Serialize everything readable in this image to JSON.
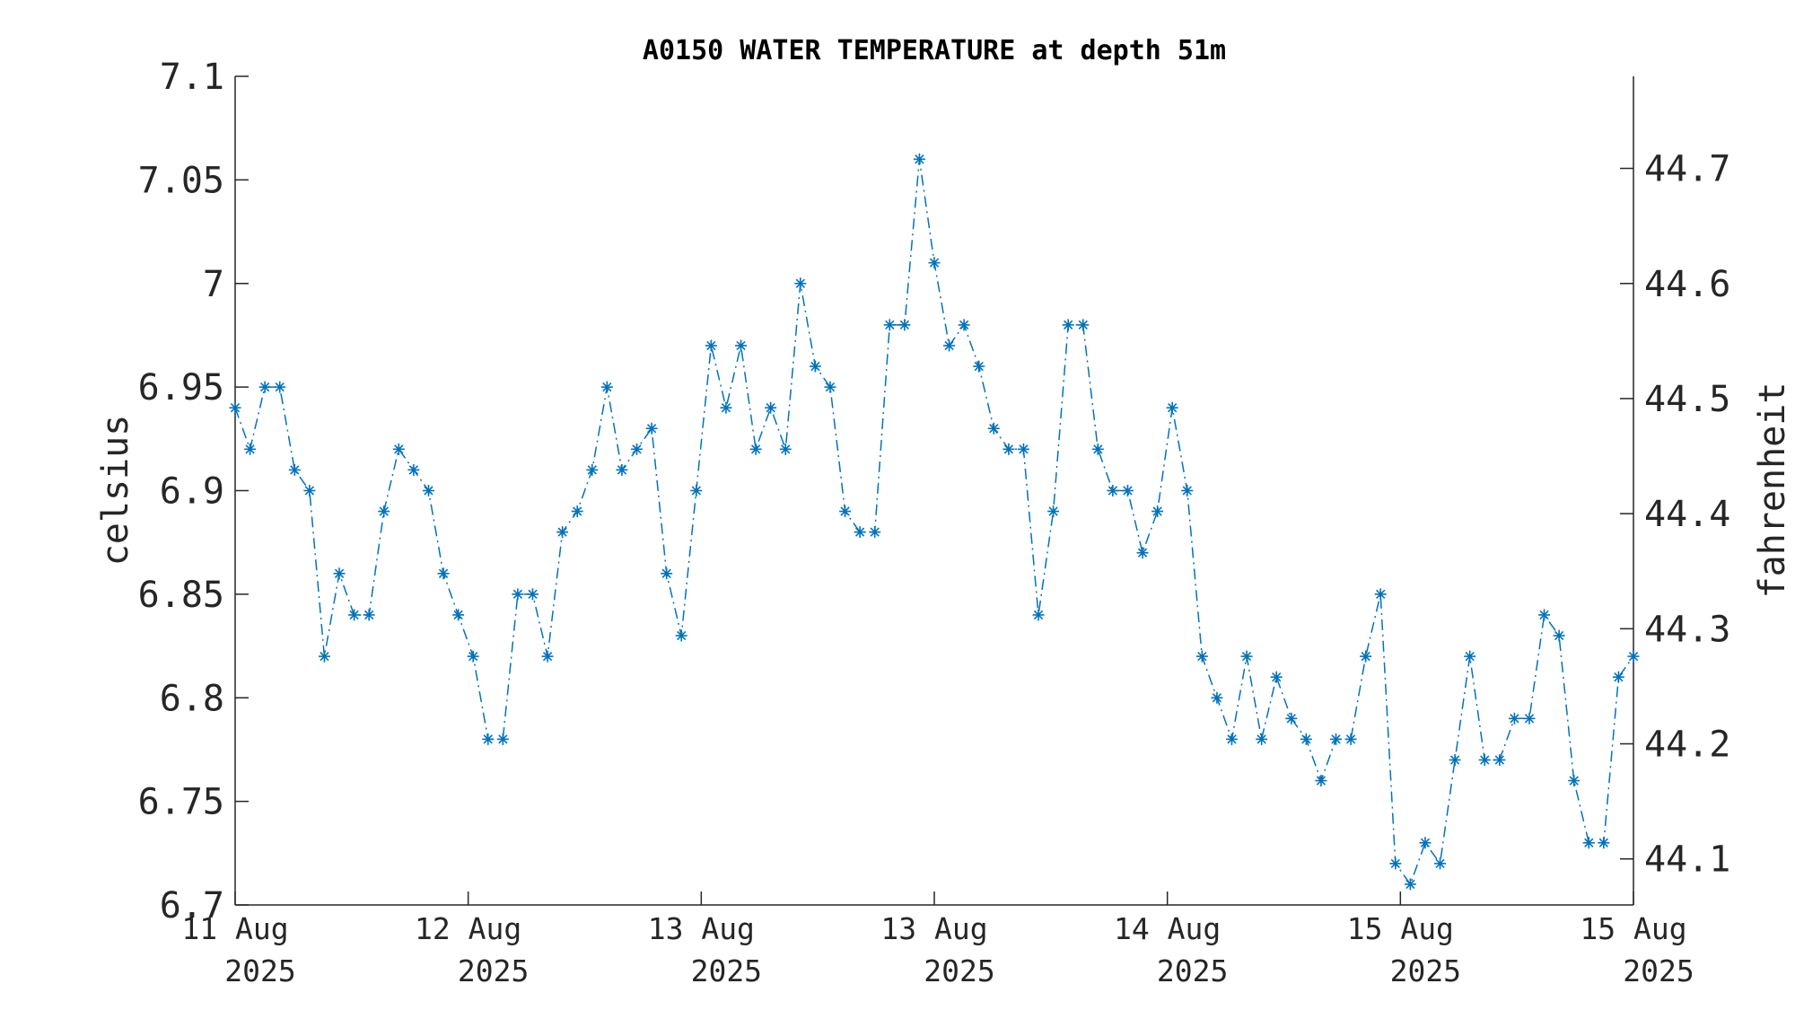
{
  "chart_data": {
    "type": "line",
    "title": "A0150 WATER TEMPERATURE at depth 51m",
    "ylabel": "celsius",
    "ylabel_right": "fahrenheit",
    "ylim": [
      6.7,
      7.1
    ],
    "ylim_right": [
      44.06,
      44.78
    ],
    "yticks": [
      "6.7",
      "6.75",
      "6.8",
      "6.85",
      "6.9",
      "6.95",
      "7",
      "7.05",
      "7.1"
    ],
    "yticks_right": [
      "44.1",
      "44.2",
      "44.3",
      "44.4",
      "44.5",
      "44.6",
      "44.7"
    ],
    "xticks": [
      {
        "day": "11 Aug",
        "year": "2025"
      },
      {
        "day": "12 Aug",
        "year": "2025"
      },
      {
        "day": "13 Aug",
        "year": "2025"
      },
      {
        "day": "13 Aug",
        "year": "2025"
      },
      {
        "day": "14 Aug",
        "year": "2025"
      },
      {
        "day": "15 Aug",
        "year": "2025"
      },
      {
        "day": "15 Aug",
        "year": "2025"
      }
    ],
    "series": [
      {
        "color": "#0072BD",
        "marker": "asterisk",
        "line_style": "dash-dot",
        "values": [
          6.94,
          6.92,
          6.95,
          6.95,
          6.91,
          6.9,
          6.82,
          6.86,
          6.84,
          6.84,
          6.89,
          6.92,
          6.91,
          6.9,
          6.86,
          6.84,
          6.82,
          6.78,
          6.78,
          6.85,
          6.85,
          6.82,
          6.88,
          6.89,
          6.91,
          6.95,
          6.91,
          6.92,
          6.93,
          6.86,
          6.83,
          6.9,
          6.97,
          6.94,
          6.97,
          6.92,
          6.94,
          6.92,
          7.0,
          6.96,
          6.95,
          6.89,
          6.88,
          6.88,
          6.98,
          6.98,
          7.06,
          7.01,
          6.97,
          6.98,
          6.96,
          6.93,
          6.92,
          6.92,
          6.84,
          6.89,
          6.98,
          6.98,
          6.92,
          6.9,
          6.9,
          6.87,
          6.89,
          6.94,
          6.9,
          6.82,
          6.8,
          6.78,
          6.82,
          6.78,
          6.81,
          6.79,
          6.78,
          6.76,
          6.78,
          6.78,
          6.82,
          6.85,
          6.72,
          6.71,
          6.73,
          6.72,
          6.77,
          6.82,
          6.77,
          6.77,
          6.79,
          6.79,
          6.84,
          6.83,
          6.76,
          6.73,
          6.73,
          6.81,
          6.82
        ]
      }
    ]
  }
}
